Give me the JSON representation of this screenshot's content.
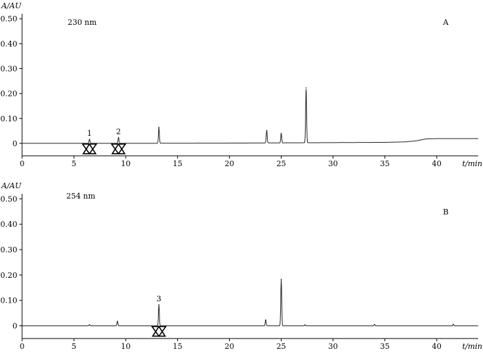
{
  "chart_data": [
    {
      "type": "line",
      "panel_label": "A",
      "wavelength_label": "230 nm",
      "ylabel": "A/AU",
      "xlabel": "t/min",
      "xlim": [
        0,
        44
      ],
      "ylim": [
        -0.05,
        0.52
      ],
      "x_ticks": [
        0,
        5,
        10,
        15,
        20,
        25,
        30,
        35,
        40
      ],
      "x_tick_labels": [
        "0",
        "5",
        "10",
        "15",
        "20",
        "25",
        "30",
        "35",
        "40"
      ],
      "y_ticks": [
        0,
        0.1,
        0.2,
        0.3,
        0.4,
        0.5
      ],
      "y_tick_labels": [
        "0",
        "0.10",
        "0.20",
        "0.30",
        "0.40",
        "0.50"
      ],
      "baseline": [
        [
          0,
          0
        ],
        [
          5,
          0
        ],
        [
          10,
          0
        ],
        [
          20,
          0.001
        ],
        [
          30,
          0.003
        ],
        [
          35,
          0.004
        ],
        [
          37,
          0.006
        ],
        [
          38,
          0.01
        ],
        [
          39,
          0.018
        ],
        [
          40,
          0.019
        ],
        [
          44,
          0.019
        ]
      ],
      "peaks": [
        {
          "x": 6.5,
          "height": 0.016,
          "label": "1"
        },
        {
          "x": 9.3,
          "height": 0.023,
          "label": "2"
        },
        {
          "x": 13.2,
          "height": 0.064,
          "label": ""
        },
        {
          "x": 23.6,
          "height": 0.05,
          "label": ""
        },
        {
          "x": 25.0,
          "height": 0.038,
          "label": ""
        },
        {
          "x": 27.4,
          "height": 0.22,
          "label": ""
        }
      ],
      "markers": [
        {
          "x": 6.5,
          "label": "1"
        },
        {
          "x": 9.3,
          "label": "2"
        }
      ]
    },
    {
      "type": "line",
      "panel_label": "B",
      "wavelength_label": "254 nm",
      "ylabel": "A/AU",
      "xlabel": "t/min",
      "xlim": [
        0,
        44
      ],
      "ylim": [
        -0.05,
        0.52
      ],
      "x_ticks": [
        0,
        5,
        10,
        15,
        20,
        25,
        30,
        35,
        40
      ],
      "x_tick_labels": [
        "0",
        "5",
        "10",
        "15",
        "20",
        "25",
        "30",
        "35",
        "40"
      ],
      "y_ticks": [
        0,
        0.1,
        0.2,
        0.3,
        0.4,
        0.5
      ],
      "y_tick_labels": [
        "0",
        "0.10",
        "0.20",
        "0.30",
        "0.40",
        "0.50"
      ],
      "baseline": [
        [
          0,
          0
        ],
        [
          44,
          0
        ]
      ],
      "peaks": [
        {
          "x": 6.5,
          "height": 0.004,
          "label": ""
        },
        {
          "x": 9.2,
          "height": 0.018,
          "label": ""
        },
        {
          "x": 13.2,
          "height": 0.083,
          "label": "3"
        },
        {
          "x": 23.5,
          "height": 0.023,
          "label": ""
        },
        {
          "x": 25.0,
          "height": 0.183,
          "label": ""
        },
        {
          "x": 27.3,
          "height": 0.004,
          "label": ""
        },
        {
          "x": 34.0,
          "height": 0.005,
          "label": ""
        },
        {
          "x": 41.6,
          "height": 0.006,
          "label": ""
        }
      ],
      "markers": [
        {
          "x": 13.2,
          "label": "3"
        }
      ]
    }
  ]
}
